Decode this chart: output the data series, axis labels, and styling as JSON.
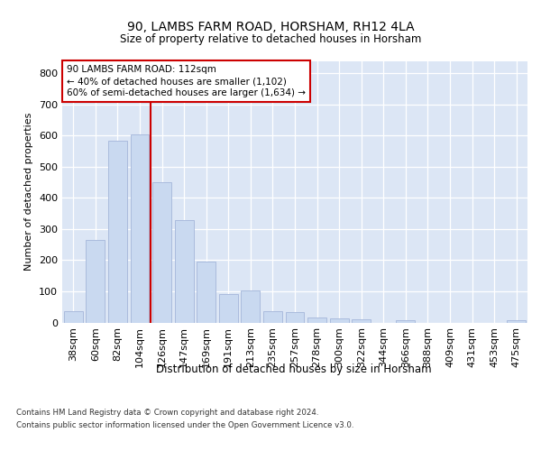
{
  "title1": "90, LAMBS FARM ROAD, HORSHAM, RH12 4LA",
  "title2": "Size of property relative to detached houses in Horsham",
  "xlabel": "Distribution of detached houses by size in Horsham",
  "ylabel": "Number of detached properties",
  "footer1": "Contains HM Land Registry data © Crown copyright and database right 2024.",
  "footer2": "Contains public sector information licensed under the Open Government Licence v3.0.",
  "annotation_line1": "90 LAMBS FARM ROAD: 112sqm",
  "annotation_line2": "← 40% of detached houses are smaller (1,102)",
  "annotation_line3": "60% of semi-detached houses are larger (1,634) →",
  "bar_color": "#c9d9f0",
  "bar_edge_color": "#aabbdd",
  "highlight_line_color": "#cc0000",
  "background_color": "#dce6f5",
  "categories": [
    "38sqm",
    "60sqm",
    "82sqm",
    "104sqm",
    "126sqm",
    "147sqm",
    "169sqm",
    "191sqm",
    "213sqm",
    "235sqm",
    "257sqm",
    "278sqm",
    "300sqm",
    "322sqm",
    "344sqm",
    "366sqm",
    "388sqm",
    "409sqm",
    "431sqm",
    "453sqm",
    "475sqm"
  ],
  "values": [
    37,
    265,
    585,
    605,
    450,
    330,
    195,
    92,
    103,
    37,
    33,
    16,
    12,
    10,
    0,
    7,
    0,
    0,
    0,
    0,
    7
  ],
  "highlight_after_index": 3,
  "ylim_max": 840,
  "yticks": [
    0,
    100,
    200,
    300,
    400,
    500,
    600,
    700,
    800
  ]
}
